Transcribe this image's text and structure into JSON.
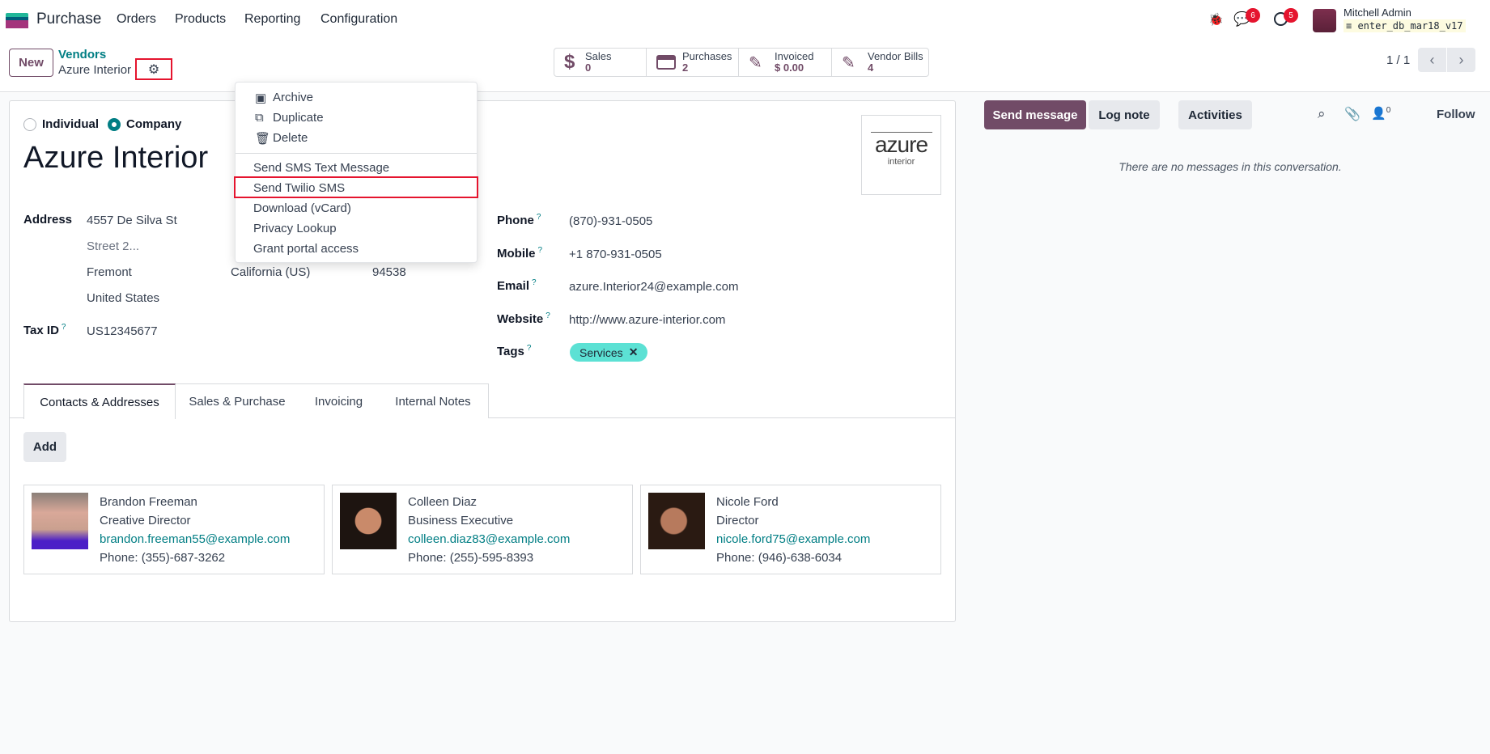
{
  "navbar": {
    "app_name": "Purchase",
    "menu": [
      "Orders",
      "Products",
      "Reporting",
      "Configuration"
    ],
    "chat_count": "6",
    "activity_count": "5",
    "user_name": "Mitchell Admin",
    "database": "enter_db_mar18_v17"
  },
  "control_panel": {
    "new_label": "New",
    "breadcrumb_parent": "Vendors",
    "breadcrumb_current": "Azure Interior",
    "pager": "1 / 1",
    "stats": [
      {
        "label": "Sales",
        "value": "0",
        "icon": "dollar-icon"
      },
      {
        "label": "Purchases",
        "value": "2",
        "icon": "credit-card-icon"
      },
      {
        "label": "Invoiced",
        "value": "$ 0.00",
        "icon": "edit-icon"
      },
      {
        "label": "Vendor Bills",
        "value": "4",
        "icon": "edit-icon"
      }
    ]
  },
  "actions_menu": {
    "items": [
      "Archive",
      "Duplicate",
      "Delete",
      "Send SMS Text Message",
      "Send Twilio SMS",
      "Download (vCard)",
      "Privacy Lookup",
      "Grant portal access"
    ],
    "highlighted": "Send Twilio SMS"
  },
  "form": {
    "type_options": [
      "Individual",
      "Company"
    ],
    "selected_type": "Company",
    "name": "Azure Interior",
    "logo_text": "azure",
    "logo_subtext": "interior",
    "address_label": "Address",
    "street": "4557 De Silva St",
    "street2_placeholder": "Street 2...",
    "city": "Fremont",
    "state": "California (US)",
    "zip": "94538",
    "country": "United States",
    "tax_label": "Tax ID",
    "tax_id": "US12345677",
    "phone_label": "Phone",
    "phone": "(870)-931-0505",
    "mobile_label": "Mobile",
    "mobile": "+1 870-931-0505",
    "email_label": "Email",
    "email": "azure.Interior24@example.com",
    "website_label": "Website",
    "website": "http://www.azure-interior.com",
    "tags_label": "Tags",
    "tag": "Services",
    "tag_color": "#5ce1d4",
    "tabs": [
      "Contacts & Addresses",
      "Sales & Purchase",
      "Invoicing",
      "Internal Notes"
    ],
    "active_tab": "Contacts & Addresses",
    "add_label": "Add",
    "contacts": [
      {
        "name": "Brandon Freeman",
        "title": "Creative Director",
        "email": "brandon.freeman55@example.com",
        "phone": "Phone: (355)-687-3262"
      },
      {
        "name": "Colleen Diaz",
        "title": "Business Executive",
        "email": "colleen.diaz83@example.com",
        "phone": "Phone: (255)-595-8393"
      },
      {
        "name": "Nicole Ford",
        "title": "Director",
        "email": "nicole.ford75@example.com",
        "phone": "Phone: (946)-638-6034"
      }
    ]
  },
  "chatter": {
    "send_message": "Send message",
    "log_note": "Log note",
    "activities": "Activities",
    "followers_count": "0",
    "follow": "Follow",
    "empty": "There are no messages in this conversation."
  },
  "colors": {
    "primary": "#714b67",
    "link": "#017e84",
    "highlight_box": "#e5142e"
  }
}
